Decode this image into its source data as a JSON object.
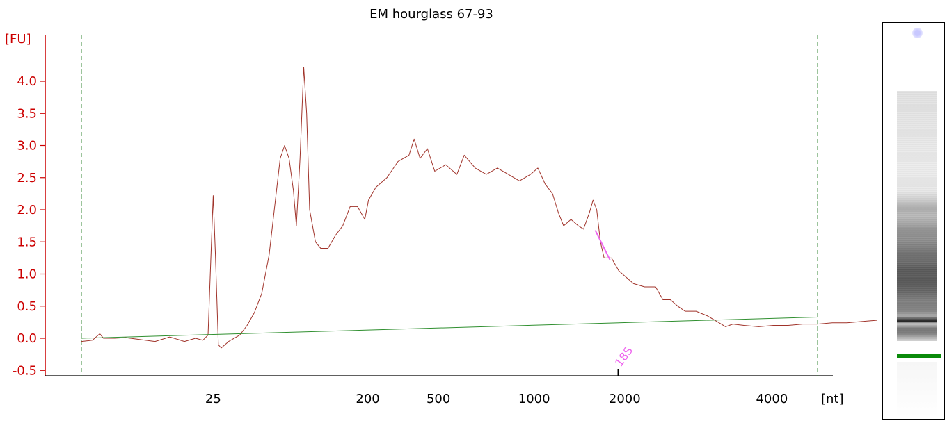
{
  "chart_data": {
    "type": "line",
    "title": "EM hourglass 67-93",
    "ylabel": "[FU]",
    "xlabel": "[nt]",
    "ylim": [
      -0.55,
      4.6
    ],
    "y_ticks": [
      "-0.5",
      "0.0",
      "0.5",
      "1.0",
      "1.5",
      "2.0",
      "2.5",
      "3.0",
      "3.5",
      "4.0"
    ],
    "x_ticks": [
      {
        "label": "25",
        "t": 0.179
      },
      {
        "label": "200",
        "t": 0.389
      },
      {
        "label": "500",
        "t": 0.485
      },
      {
        "label": "1000",
        "t": 0.615
      },
      {
        "label": "2000",
        "t": 0.738
      },
      {
        "label": "4000",
        "t": 0.938
      }
    ],
    "peak_label": {
      "text": "18S",
      "x": 0.729
    },
    "series": [
      {
        "color": "#a0332a",
        "points": [
          [
            0.0,
            -0.05
          ],
          [
            0.015,
            -0.03
          ],
          [
            0.025,
            0.07
          ],
          [
            0.03,
            0.0
          ],
          [
            0.045,
            0.0
          ],
          [
            0.06,
            0.01
          ],
          [
            0.08,
            -0.02
          ],
          [
            0.1,
            -0.05
          ],
          [
            0.12,
            0.02
          ],
          [
            0.14,
            -0.05
          ],
          [
            0.155,
            0.0
          ],
          [
            0.165,
            -0.03
          ],
          [
            0.172,
            0.05
          ],
          [
            0.176,
            1.3
          ],
          [
            0.179,
            2.22
          ],
          [
            0.182,
            1.3
          ],
          [
            0.186,
            -0.1
          ],
          [
            0.19,
            -0.15
          ],
          [
            0.2,
            -0.05
          ],
          [
            0.215,
            0.05
          ],
          [
            0.225,
            0.2
          ],
          [
            0.235,
            0.4
          ],
          [
            0.245,
            0.7
          ],
          [
            0.255,
            1.3
          ],
          [
            0.262,
            2.0
          ],
          [
            0.27,
            2.8
          ],
          [
            0.276,
            3.0
          ],
          [
            0.282,
            2.8
          ],
          [
            0.288,
            2.3
          ],
          [
            0.292,
            1.75
          ],
          [
            0.297,
            2.8
          ],
          [
            0.302,
            4.22
          ],
          [
            0.306,
            3.5
          ],
          [
            0.31,
            2.0
          ],
          [
            0.318,
            1.5
          ],
          [
            0.325,
            1.4
          ],
          [
            0.335,
            1.4
          ],
          [
            0.345,
            1.6
          ],
          [
            0.355,
            1.75
          ],
          [
            0.365,
            2.05
          ],
          [
            0.375,
            2.05
          ],
          [
            0.385,
            1.85
          ],
          [
            0.39,
            2.15
          ],
          [
            0.4,
            2.35
          ],
          [
            0.415,
            2.5
          ],
          [
            0.43,
            2.75
          ],
          [
            0.445,
            2.85
          ],
          [
            0.452,
            3.1
          ],
          [
            0.46,
            2.8
          ],
          [
            0.47,
            2.95
          ],
          [
            0.48,
            2.6
          ],
          [
            0.495,
            2.7
          ],
          [
            0.51,
            2.55
          ],
          [
            0.52,
            2.85
          ],
          [
            0.535,
            2.65
          ],
          [
            0.55,
            2.55
          ],
          [
            0.565,
            2.65
          ],
          [
            0.58,
            2.55
          ],
          [
            0.595,
            2.45
          ],
          [
            0.61,
            2.55
          ],
          [
            0.62,
            2.65
          ],
          [
            0.63,
            2.4
          ],
          [
            0.64,
            2.25
          ],
          [
            0.648,
            1.95
          ],
          [
            0.655,
            1.75
          ],
          [
            0.665,
            1.85
          ],
          [
            0.675,
            1.75
          ],
          [
            0.682,
            1.7
          ],
          [
            0.69,
            1.95
          ],
          [
            0.695,
            2.15
          ],
          [
            0.7,
            2.0
          ],
          [
            0.705,
            1.5
          ],
          [
            0.71,
            1.25
          ],
          [
            0.72,
            1.25
          ],
          [
            0.73,
            1.05
          ],
          [
            0.74,
            0.95
          ],
          [
            0.75,
            0.85
          ],
          [
            0.765,
            0.8
          ],
          [
            0.78,
            0.8
          ],
          [
            0.79,
            0.6
          ],
          [
            0.8,
            0.6
          ],
          [
            0.81,
            0.5
          ],
          [
            0.82,
            0.42
          ],
          [
            0.835,
            0.42
          ],
          [
            0.85,
            0.35
          ],
          [
            0.865,
            0.25
          ],
          [
            0.875,
            0.18
          ],
          [
            0.885,
            0.22
          ],
          [
            0.9,
            0.2
          ],
          [
            0.92,
            0.18
          ],
          [
            0.94,
            0.2
          ],
          [
            0.96,
            0.2
          ],
          [
            0.98,
            0.22
          ],
          [
            1.0,
            0.22
          ],
          [
            1.02,
            0.24
          ],
          [
            1.04,
            0.24
          ],
          [
            1.06,
            0.26
          ],
          [
            1.08,
            0.28
          ],
          [
            1.1,
            0.3
          ],
          [
            1.12,
            0.3
          ],
          [
            1.14,
            0.32
          ],
          [
            1.155,
            0.3
          ],
          [
            1.165,
            0.33
          ],
          [
            1.175,
            0.33
          ],
          [
            1.19,
            0.25
          ]
        ]
      },
      {
        "color": "#2f8f2f",
        "points": [
          [
            0.0,
            0.0
          ],
          [
            1.0,
            0.33
          ]
        ]
      },
      {
        "color": "#ee66ee",
        "points": [
          [
            0.698,
            1.68
          ],
          [
            0.718,
            1.22
          ]
        ]
      }
    ]
  },
  "gel": {
    "marker_color": "#c8c8ff",
    "band_color": "#0a8a0a"
  }
}
